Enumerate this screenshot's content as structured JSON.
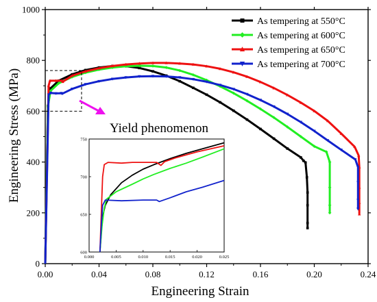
{
  "chart_data": [
    {
      "type": "line",
      "title": "",
      "xlabel": "Engineering Strain",
      "ylabel": "Engineering Stress (MPa)",
      "xlim": [
        0.0,
        0.24
      ],
      "ylim": [
        0,
        1000
      ],
      "xticks": [
        "0.00",
        "0.04",
        "0.08",
        "0.12",
        "0.16",
        "0.20",
        "0.24"
      ],
      "yticks": [
        "0",
        "200",
        "400",
        "600",
        "800",
        "1000"
      ],
      "legend_position": "top-right",
      "annotation": "Yield phenomenon",
      "series": [
        {
          "name": "As tempering at 550°C",
          "color": "#000000",
          "marker": "square",
          "points": [
            [
              0,
              0
            ],
            [
              0.002,
              620
            ],
            [
              0.004,
              690
            ],
            [
              0.01,
              720
            ],
            [
              0.02,
              745
            ],
            [
              0.03,
              762
            ],
            [
              0.04,
              772
            ],
            [
              0.05,
              778
            ],
            [
              0.06,
              777
            ],
            [
              0.07,
              770
            ],
            [
              0.08,
              757
            ],
            [
              0.09,
              740
            ],
            [
              0.1,
              718
            ],
            [
              0.11,
              692
            ],
            [
              0.12,
              665
            ],
            [
              0.13,
              635
            ],
            [
              0.14,
              602
            ],
            [
              0.15,
              567
            ],
            [
              0.16,
              530
            ],
            [
              0.17,
              492
            ],
            [
              0.18,
              453
            ],
            [
              0.19,
              418
            ],
            [
              0.192,
              405
            ],
            [
              0.1935,
              398
            ],
            [
              0.1945,
              340
            ],
            [
              0.195,
              280
            ],
            [
              0.195,
              230
            ],
            [
              0.195,
              160
            ],
            [
              0.195,
              140
            ]
          ]
        },
        {
          "name": "As tempering at 600°C",
          "color": "#22ee22",
          "marker": "diamond",
          "points": [
            [
              0,
              0
            ],
            [
              0.002,
              620
            ],
            [
              0.004,
              680
            ],
            [
              0.01,
              710
            ],
            [
              0.02,
              735
            ],
            [
              0.03,
              752
            ],
            [
              0.04,
              764
            ],
            [
              0.05,
              772
            ],
            [
              0.06,
              777
            ],
            [
              0.07,
              779
            ],
            [
              0.08,
              778
            ],
            [
              0.09,
              772
            ],
            [
              0.1,
              760
            ],
            [
              0.11,
              743
            ],
            [
              0.12,
              722
            ],
            [
              0.13,
              698
            ],
            [
              0.14,
              671
            ],
            [
              0.15,
              641
            ],
            [
              0.16,
              609
            ],
            [
              0.17,
              575
            ],
            [
              0.18,
              538
            ],
            [
              0.19,
              500
            ],
            [
              0.2,
              462
            ],
            [
              0.209,
              440
            ],
            [
              0.2115,
              400
            ],
            [
              0.2115,
              300
            ],
            [
              0.2115,
              230
            ],
            [
              0.2115,
              200
            ]
          ]
        },
        {
          "name": "As tempering at 650°C",
          "color": "#ee1111",
          "marker": "triangle-up",
          "points": [
            [
              0,
              0
            ],
            [
              0.0025,
              700
            ],
            [
              0.0035,
              720
            ],
            [
              0.008,
              720
            ],
            [
              0.0125,
              720
            ],
            [
              0.013,
              716
            ],
            [
              0.02,
              740
            ],
            [
              0.03,
              757
            ],
            [
              0.04,
              769
            ],
            [
              0.05,
              778
            ],
            [
              0.06,
              784
            ],
            [
              0.07,
              788
            ],
            [
              0.08,
              790
            ],
            [
              0.09,
              790
            ],
            [
              0.1,
              788
            ],
            [
              0.11,
              784
            ],
            [
              0.12,
              777
            ],
            [
              0.13,
              767
            ],
            [
              0.14,
              753
            ],
            [
              0.15,
              736
            ],
            [
              0.16,
              715
            ],
            [
              0.17,
              691
            ],
            [
              0.18,
              664
            ],
            [
              0.19,
              634
            ],
            [
              0.2,
              601
            ],
            [
              0.21,
              562
            ],
            [
              0.22,
              512
            ],
            [
              0.23,
              460
            ],
            [
              0.233,
              425
            ],
            [
              0.2335,
              380
            ],
            [
              0.2335,
              300
            ],
            [
              0.2335,
              240
            ],
            [
              0.2335,
              195
            ]
          ]
        },
        {
          "name": "As tempering at 700°C",
          "color": "#1122cc",
          "marker": "triangle-down",
          "points": [
            [
              0,
              0
            ],
            [
              0.0025,
              665
            ],
            [
              0.004,
              672
            ],
            [
              0.008,
              670
            ],
            [
              0.012,
              671
            ],
            [
              0.0127,
              669
            ],
            [
              0.02,
              688
            ],
            [
              0.03,
              706
            ],
            [
              0.04,
              718
            ],
            [
              0.05,
              727
            ],
            [
              0.06,
              733
            ],
            [
              0.07,
              737
            ],
            [
              0.08,
              738
            ],
            [
              0.09,
              737
            ],
            [
              0.1,
              733
            ],
            [
              0.11,
              726
            ],
            [
              0.12,
              716
            ],
            [
              0.13,
              703
            ],
            [
              0.14,
              687
            ],
            [
              0.15,
              667
            ],
            [
              0.16,
              644
            ],
            [
              0.17,
              618
            ],
            [
              0.18,
              589
            ],
            [
              0.19,
              557
            ],
            [
              0.2,
              522
            ],
            [
              0.21,
              485
            ],
            [
              0.22,
              448
            ],
            [
              0.2305,
              410
            ],
            [
              0.2325,
              380
            ],
            [
              0.2325,
              320
            ],
            [
              0.2325,
              250
            ],
            [
              0.2325,
              215
            ]
          ]
        }
      ]
    },
    {
      "type": "line",
      "title": "",
      "xlim": [
        0.0,
        0.025
      ],
      "ylim": [
        600,
        750
      ],
      "xticks": [
        "0.000",
        "0.005",
        "0.010",
        "0.015",
        "0.020",
        "0.025"
      ],
      "yticks": [
        "600",
        "650",
        "700",
        "750"
      ],
      "series": [
        {
          "color": "#000000",
          "points": [
            [
              0.002,
              600
            ],
            [
              0.0023,
              630
            ],
            [
              0.0026,
              650
            ],
            [
              0.003,
              662
            ],
            [
              0.004,
              676
            ],
            [
              0.006,
              692
            ],
            [
              0.008,
              702
            ],
            [
              0.01,
              710
            ],
            [
              0.012,
              716
            ],
            [
              0.015,
              724
            ],
            [
              0.018,
              731
            ],
            [
              0.021,
              737
            ],
            [
              0.025,
              745
            ]
          ]
        },
        {
          "color": "#22ee22",
          "points": [
            [
              0.002,
              600
            ],
            [
              0.0024,
              635
            ],
            [
              0.0028,
              658
            ],
            [
              0.0032,
              670
            ],
            [
              0.005,
              680
            ],
            [
              0.008,
              690
            ],
            [
              0.01,
              697
            ],
            [
              0.012,
              703
            ],
            [
              0.015,
              711
            ],
            [
              0.018,
              718
            ],
            [
              0.021,
              726
            ],
            [
              0.025,
              737
            ]
          ]
        },
        {
          "color": "#ee1111",
          "points": [
            [
              0.002,
              600
            ],
            [
              0.0023,
              660
            ],
            [
              0.0025,
              700
            ],
            [
              0.0028,
              716
            ],
            [
              0.0035,
              719
            ],
            [
              0.006,
              718
            ],
            [
              0.008,
              719
            ],
            [
              0.01,
              719
            ],
            [
              0.0125,
              719
            ],
            [
              0.0133,
              715
            ],
            [
              0.014,
              720
            ],
            [
              0.016,
              725
            ],
            [
              0.018,
              729
            ],
            [
              0.02,
              733
            ],
            [
              0.025,
              741
            ]
          ]
        },
        {
          "color": "#1122cc",
          "points": [
            [
              0.002,
              600
            ],
            [
              0.0023,
              640
            ],
            [
              0.0025,
              662
            ],
            [
              0.003,
              669
            ],
            [
              0.006,
              668
            ],
            [
              0.01,
              669
            ],
            [
              0.0125,
              669
            ],
            [
              0.013,
              667
            ],
            [
              0.015,
              672
            ],
            [
              0.018,
              680
            ],
            [
              0.021,
              686
            ],
            [
              0.025,
              695
            ]
          ]
        }
      ]
    }
  ]
}
